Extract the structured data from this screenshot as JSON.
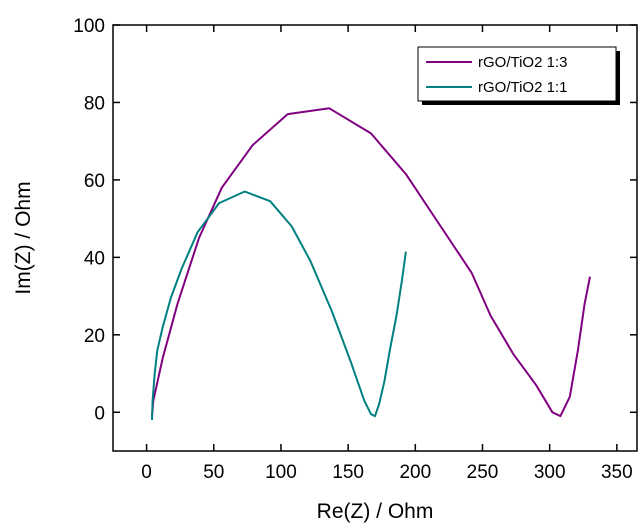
{
  "chart_data": {
    "type": "line",
    "title": "",
    "xlabel": "Re(Z) / Ohm",
    "ylabel": "Im(Z) / Ohm",
    "xlim": [
      -25,
      365
    ],
    "ylim": [
      -10,
      100
    ],
    "xticks": [
      0,
      50,
      100,
      150,
      200,
      250,
      300,
      350
    ],
    "yticks": [
      0,
      20,
      40,
      60,
      80,
      100
    ],
    "grid": false,
    "legend_position": "top-right",
    "series": [
      {
        "name": "rGO/TiO2 1:3",
        "color": "#800080",
        "x": [
          4,
          5,
          12,
          23,
          39,
          56,
          79,
          105,
          136,
          167,
          193,
          217,
          242,
          256,
          273,
          290,
          302,
          308,
          315,
          321,
          326,
          330
        ],
        "y": [
          -1,
          3,
          14,
          28,
          45,
          58,
          69,
          77,
          78.5,
          72,
          61.5,
          49,
          36,
          25,
          15,
          7,
          0,
          -1,
          4,
          16,
          28,
          35
        ]
      },
      {
        "name": "rGO/TiO2 1:1",
        "color": "#008080",
        "x": [
          4,
          4.5,
          6,
          8,
          12,
          18,
          26,
          38,
          54,
          73,
          92,
          108,
          122,
          138,
          152,
          162,
          167,
          170,
          173,
          177,
          181,
          186,
          190,
          193
        ],
        "y": [
          -2,
          3,
          10,
          16,
          22,
          29.5,
          37,
          46.5,
          54,
          57,
          54.5,
          48,
          39,
          26,
          13,
          3,
          -0.5,
          -1,
          2,
          8,
          16,
          25,
          34,
          41.5
        ]
      }
    ]
  }
}
